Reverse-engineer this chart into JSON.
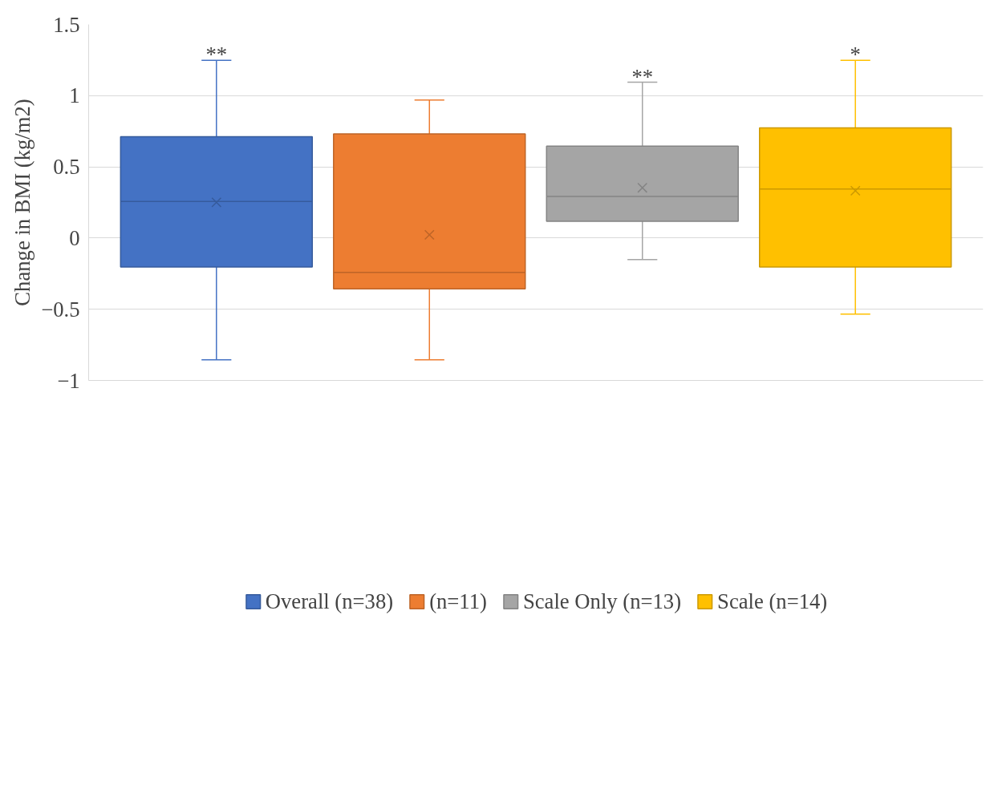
{
  "chart_data": {
    "type": "box",
    "ylabel": "Change in BMI (kg/m2)",
    "categories": [
      null,
      null,
      null,
      null
    ],
    "ylim": [
      -1,
      1.5
    ],
    "yticks": [
      -1,
      -0.5,
      0,
      0.5,
      1,
      1.5
    ],
    "grid": "y",
    "legend": "bottom",
    "marker": "cross",
    "series": [
      {
        "name": "Overall (n=38)",
        "color": "#4472c4",
        "boxes": [
          {
            "low": -0.855,
            "q1": -0.203,
            "median": 0.257,
            "q3": 0.712,
            "high": 1.248,
            "mean": 0.251
          },
          null,
          null,
          null
        ]
      },
      {
        "name": "(n=11)",
        "color": "#ed7d31",
        "boxes": [
          null,
          {
            "low": -0.855,
            "q1": -0.357,
            "median": -0.241,
            "q3": 0.732,
            "high": 0.97,
            "mean": 0.023
          },
          null,
          null
        ]
      },
      {
        "name": "Scale Only (n=13)",
        "color": "#a5a5a5",
        "boxes": [
          null,
          null,
          {
            "low": -0.151,
            "q1": 0.118,
            "median": 0.292,
            "q3": 0.645,
            "high": 1.094,
            "mean": 0.353
          },
          null
        ]
      },
      {
        "name": "Scale (n=14)",
        "color": "#ffc000",
        "boxes": [
          null,
          null,
          null,
          {
            "low": -0.534,
            "q1": -0.203,
            "median": 0.344,
            "q3": 0.773,
            "high": 1.248,
            "mean": 0.332
          }
        ]
      }
    ],
    "annotations": [
      {
        "text": "**",
        "y": 1.248
      },
      {
        "text": "**",
        "y": 1.094
      },
      {
        "text": "*",
        "y": 1.248
      }
    ]
  }
}
